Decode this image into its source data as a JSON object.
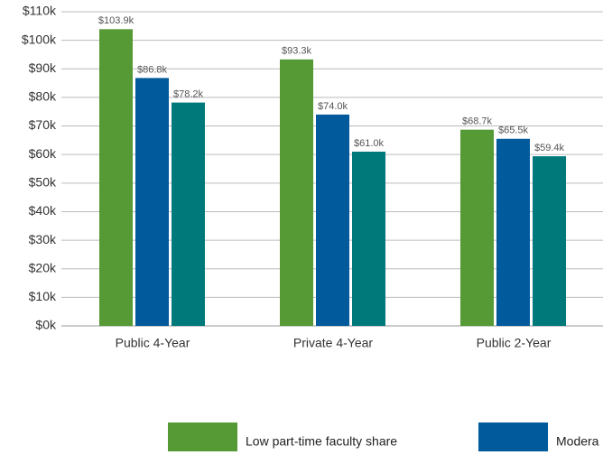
{
  "chart_data": {
    "type": "bar",
    "categories": [
      "Public 4-Year",
      "Private 4-Year",
      "Public 2-Year"
    ],
    "series": [
      {
        "name": "Low part-time faculty share",
        "color": "#569a36",
        "values": [
          103.9,
          93.3,
          68.7
        ],
        "value_labels": [
          "$103.9k",
          "$93.3k",
          "$68.7k"
        ]
      },
      {
        "name": "Modera",
        "color": "#005a9c",
        "values": [
          86.8,
          74.0,
          65.5
        ],
        "value_labels": [
          "$86.8k",
          "$74.0k",
          "$65.5k"
        ]
      },
      {
        "color": "#00797b",
        "values": [
          78.2,
          61.0,
          59.4
        ],
        "value_labels": [
          "$78.2k",
          "$61.0k",
          "$59.4k"
        ]
      }
    ],
    "ylim": [
      0,
      110
    ],
    "yticks": [
      {
        "value": 0,
        "label": "$0k"
      },
      {
        "value": 10,
        "label": "$10k"
      },
      {
        "value": 20,
        "label": "$20k"
      },
      {
        "value": 30,
        "label": "$30k"
      },
      {
        "value": 40,
        "label": "$40k"
      },
      {
        "value": 50,
        "label": "$50k"
      },
      {
        "value": 60,
        "label": "$60k"
      },
      {
        "value": 70,
        "label": "$70k"
      },
      {
        "value": 80,
        "label": "$80k"
      },
      {
        "value": 90,
        "label": "$90k"
      },
      {
        "value": 100,
        "label": "$100k"
      },
      {
        "value": 110,
        "label": "$110k"
      }
    ],
    "grid": true
  }
}
